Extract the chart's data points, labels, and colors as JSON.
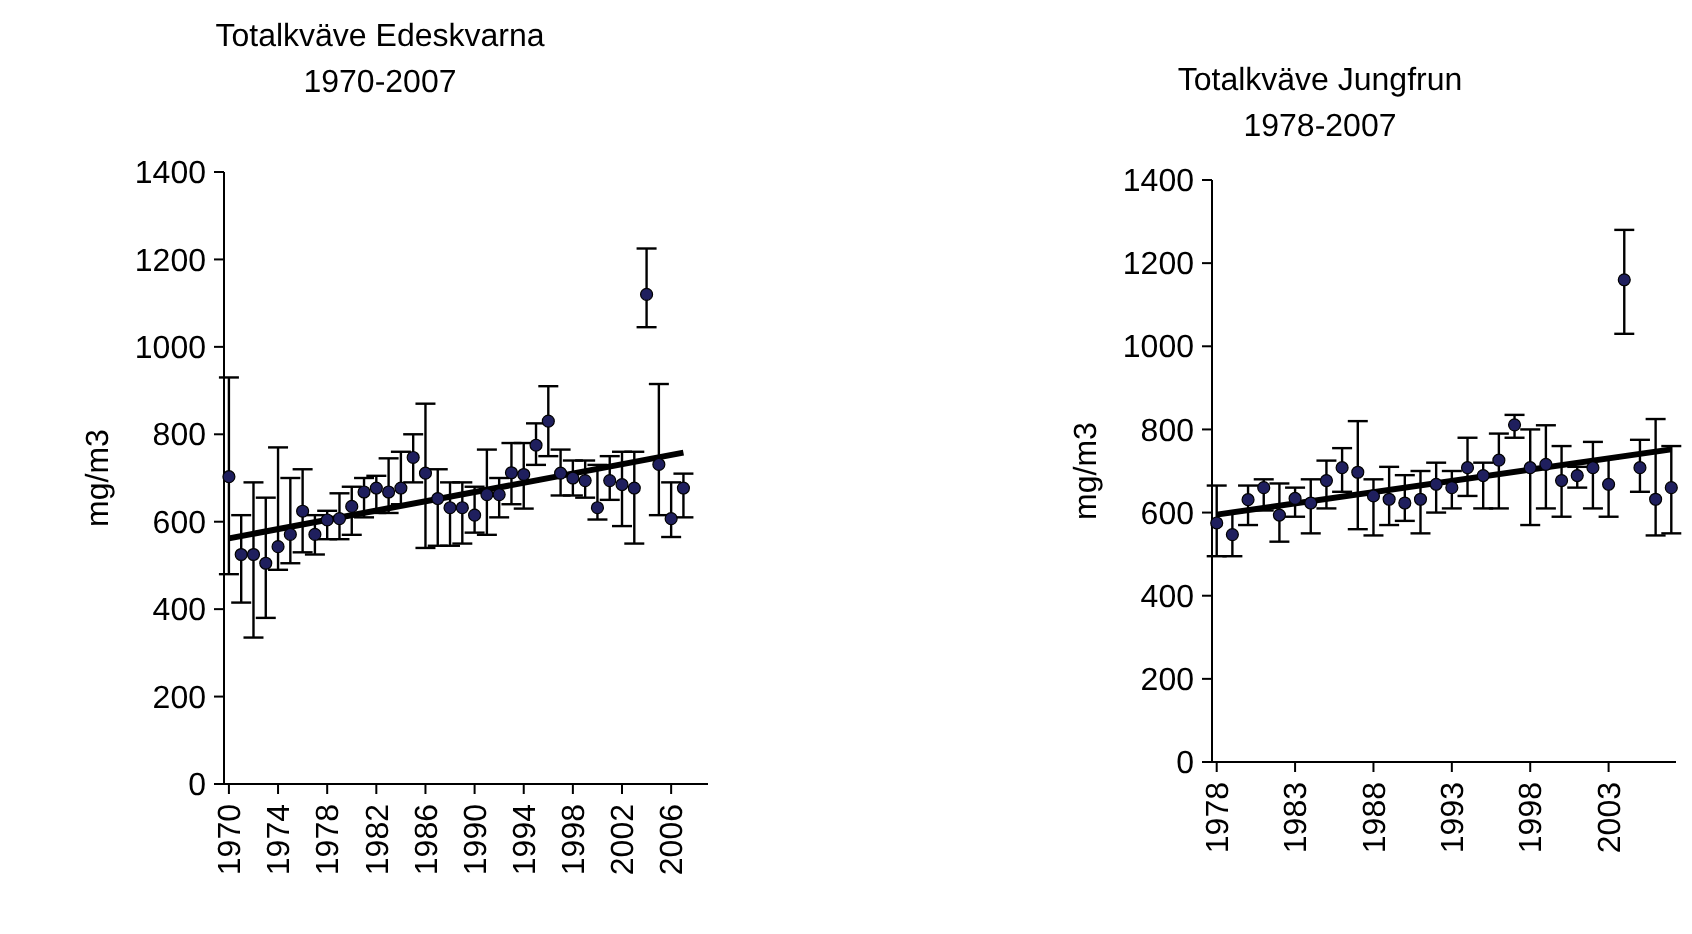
{
  "chart_data": [
    {
      "type": "scatter",
      "title": "Totalkväve Edeskvarna",
      "subtitle": "1970-2007",
      "ylabel": "mg/m3",
      "grid": false,
      "xlim": [
        1969.6,
        2009
      ],
      "ylim": [
        0,
        1400
      ],
      "xticks": [
        1970,
        1974,
        1978,
        1982,
        1986,
        1990,
        1994,
        1998,
        2002,
        2006
      ],
      "yticks": [
        0,
        200,
        400,
        600,
        800,
        1000,
        1200,
        1400
      ],
      "series": [
        {
          "marker": "circle",
          "color": "#1f1f5e",
          "x": [
            1970,
            1971,
            1972,
            1973,
            1974,
            1975,
            1976,
            1977,
            1978,
            1979,
            1980,
            1981,
            1982,
            1983,
            1984,
            1985,
            1986,
            1987,
            1988,
            1989,
            1990,
            1991,
            1992,
            1993,
            1994,
            1995,
            1996,
            1997,
            1998,
            1999,
            2000,
            2001,
            2002,
            2003,
            2004,
            2005,
            2006,
            2007
          ],
          "values": [
            703,
            525,
            525,
            505,
            543,
            571,
            624,
            571,
            604,
            607,
            635,
            668,
            677,
            668,
            677,
            747,
            711,
            653,
            632,
            632,
            615,
            662,
            662,
            712,
            708,
            775,
            830,
            711,
            700,
            694,
            632,
            694,
            685,
            677,
            1120,
            731,
            607,
            677
          ],
          "errors": [
            [
              480,
              930
            ],
            [
              415,
              615
            ],
            [
              335,
              690
            ],
            [
              380,
              655
            ],
            [
              490,
              770
            ],
            [
              505,
              700
            ],
            [
              530,
              720
            ],
            [
              525,
              615
            ],
            [
              560,
              625
            ],
            [
              560,
              665
            ],
            [
              570,
              680
            ],
            [
              610,
              700
            ],
            [
              620,
              705
            ],
            [
              620,
              745
            ],
            [
              640,
              760
            ],
            [
              690,
              800
            ],
            [
              540,
              870
            ],
            [
              545,
              720
            ],
            [
              545,
              690
            ],
            [
              550,
              690
            ],
            [
              575,
              680
            ],
            [
              570,
              765
            ],
            [
              610,
              700
            ],
            [
              640,
              780
            ],
            [
              630,
              780
            ],
            [
              730,
              825
            ],
            [
              750,
              910
            ],
            [
              660,
              765
            ],
            [
              660,
              740
            ],
            [
              655,
              740
            ],
            [
              605,
              730
            ],
            [
              650,
              750
            ],
            [
              590,
              760
            ],
            [
              550,
              760
            ],
            [
              1045,
              1225
            ],
            [
              615,
              915
            ],
            [
              565,
              690
            ],
            [
              610,
              710
            ]
          ]
        },
        {
          "type": "line",
          "color": "#000000",
          "x": [
            1970,
            2007
          ],
          "values": [
            562,
            758
          ]
        }
      ]
    },
    {
      "type": "scatter",
      "title": "Totalkväve Jungfrun",
      "subtitle": "1978-2007",
      "ylabel": "mg/m3",
      "grid": false,
      "xlim": [
        1977.7,
        2007.3
      ],
      "ylim": [
        0,
        1400
      ],
      "xticks": [
        1978,
        1983,
        1988,
        1993,
        1998,
        2003
      ],
      "yticks": [
        0,
        200,
        400,
        600,
        800,
        1000,
        1200,
        1400
      ],
      "series": [
        {
          "marker": "circle",
          "color": "#1f1f5e",
          "x": [
            1978,
            1979,
            1980,
            1981,
            1982,
            1983,
            1984,
            1985,
            1986,
            1987,
            1988,
            1989,
            1990,
            1991,
            1992,
            1993,
            1994,
            1995,
            1996,
            1997,
            1998,
            1999,
            2000,
            2001,
            2002,
            2003,
            2004,
            2005,
            2006,
            2007
          ],
          "values": [
            575,
            547,
            631,
            660,
            594,
            634,
            623,
            677,
            708,
            697,
            640,
            632,
            623,
            632,
            668,
            660,
            708,
            689,
            726,
            811,
            708,
            716,
            677,
            689,
            708,
            668,
            1160,
            708,
            632,
            660
          ],
          "errors": [
            [
              495,
              665
            ],
            [
              495,
              600
            ],
            [
              570,
              665
            ],
            [
              605,
              680
            ],
            [
              530,
              670
            ],
            [
              590,
              660
            ],
            [
              550,
              680
            ],
            [
              610,
              725
            ],
            [
              650,
              755
            ],
            [
              560,
              820
            ],
            [
              545,
              680
            ],
            [
              570,
              710
            ],
            [
              580,
              690
            ],
            [
              550,
              700
            ],
            [
              600,
              720
            ],
            [
              610,
              700
            ],
            [
              640,
              780
            ],
            [
              610,
              720
            ],
            [
              610,
              790
            ],
            [
              780,
              835
            ],
            [
              570,
              800
            ],
            [
              610,
              810
            ],
            [
              590,
              760
            ],
            [
              660,
              710
            ],
            [
              610,
              770
            ],
            [
              590,
              730
            ],
            [
              1030,
              1280
            ],
            [
              650,
              775
            ],
            [
              545,
              825
            ],
            [
              550,
              760
            ]
          ]
        },
        {
          "type": "line",
          "color": "#000000",
          "x": [
            1978,
            2007
          ],
          "values": [
            595,
            752
          ]
        }
      ]
    }
  ]
}
